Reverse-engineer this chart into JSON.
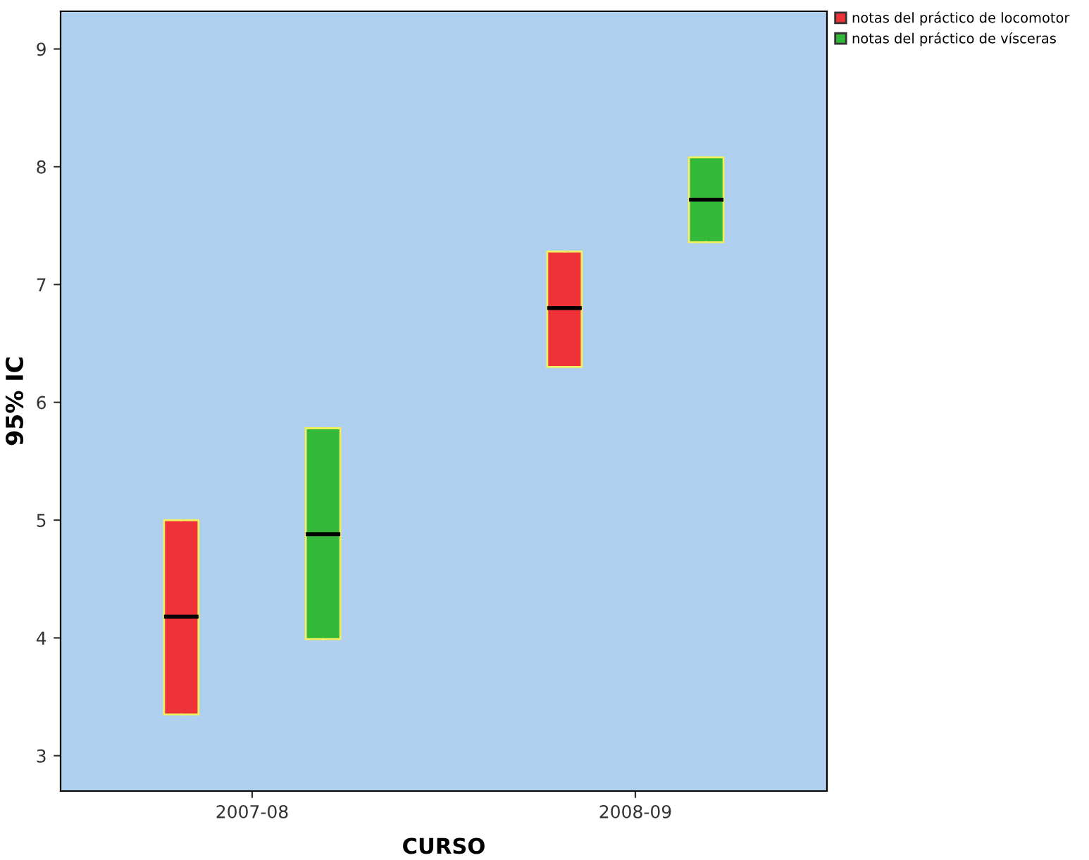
{
  "chart_data": {
    "type": "box",
    "xlabel": "CURSO",
    "ylabel": "95% IC",
    "categories": [
      "2007-08",
      "2008-09"
    ],
    "series": [
      {
        "name": "notas del práctico de locomotor",
        "color": "#ee3338",
        "boxes": [
          {
            "low": 3.35,
            "q1": 3.35,
            "median": 4.18,
            "q3": 5.0,
            "high": 5.0
          },
          {
            "low": 6.3,
            "q1": 6.3,
            "median": 6.8,
            "q3": 7.28,
            "high": 7.28
          }
        ]
      },
      {
        "name": "notas del práctico de vísceras",
        "color": "#33b83a",
        "boxes": [
          {
            "low": 3.99,
            "q1": 3.99,
            "median": 4.88,
            "q3": 5.78,
            "high": 5.78
          },
          {
            "low": 7.36,
            "q1": 7.36,
            "median": 7.72,
            "q3": 8.08,
            "high": 8.08
          }
        ]
      }
    ],
    "ylim": [
      2.7,
      9.32
    ],
    "yticks": [
      3,
      4,
      5,
      6,
      7,
      8,
      9
    ],
    "grid": false,
    "legend": "top right"
  }
}
